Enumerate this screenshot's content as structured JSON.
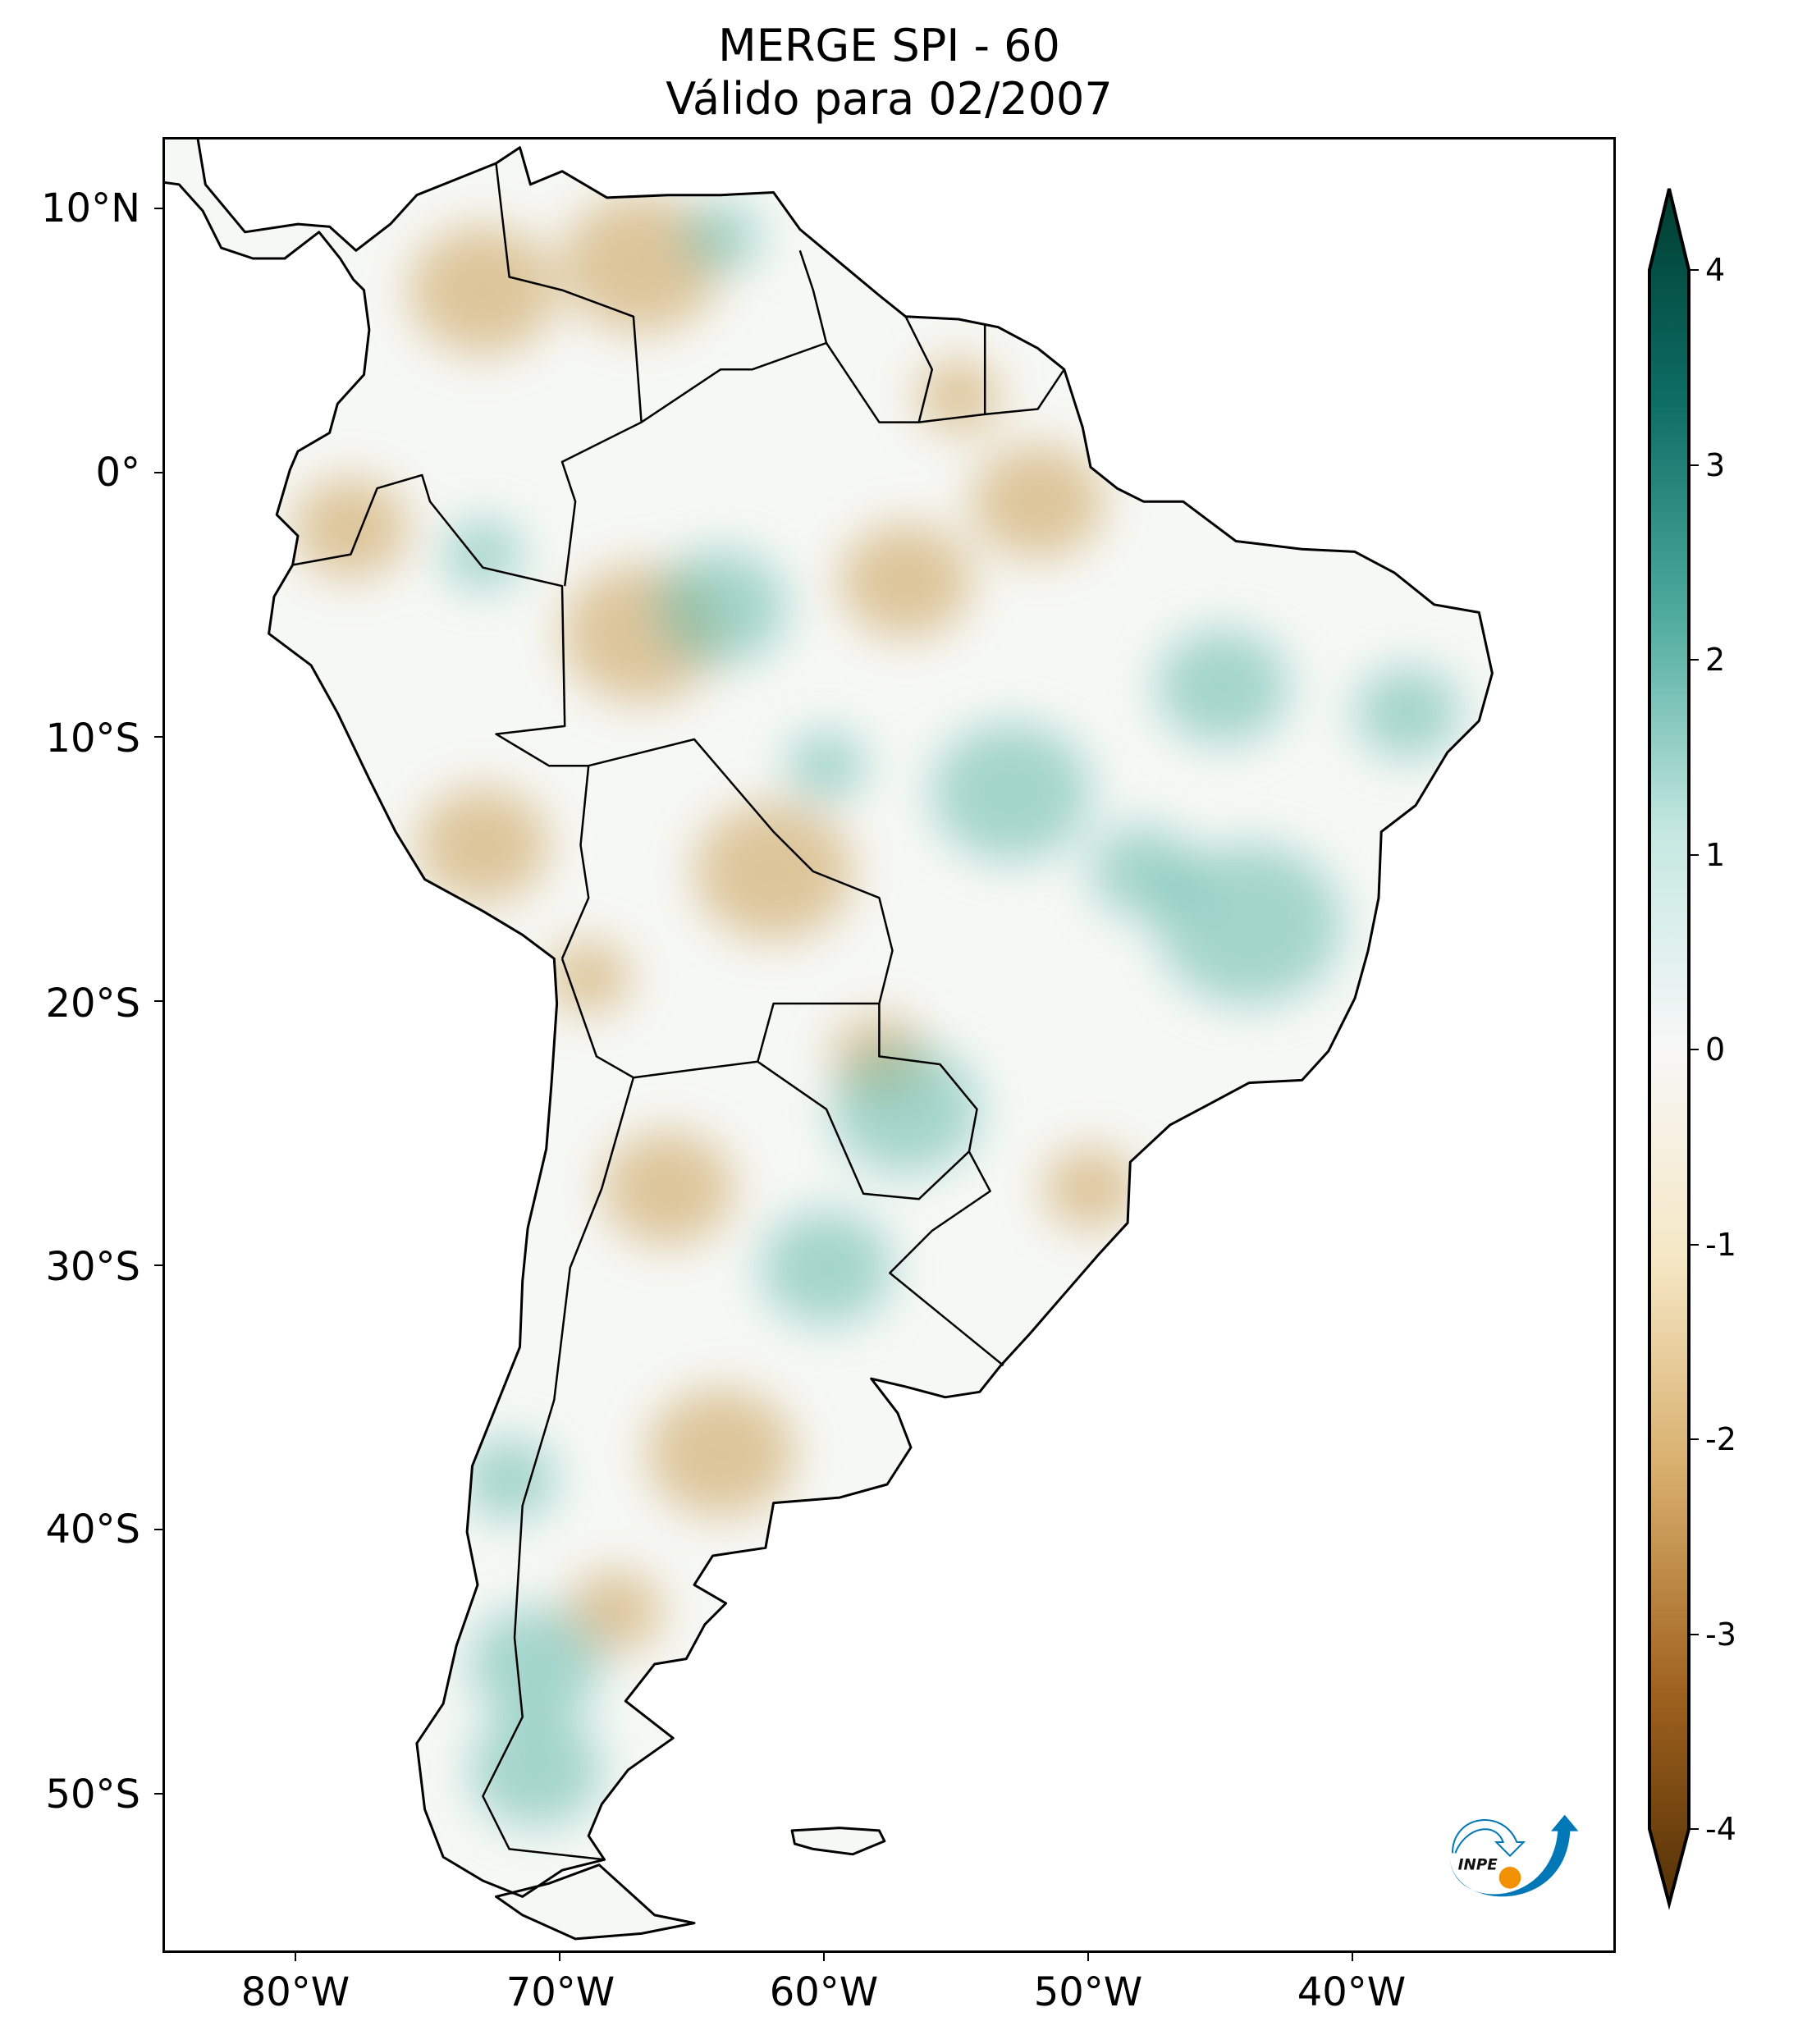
{
  "title": {
    "line1": "MERGE   SPI - 60",
    "line2": "Válido para 02/2007"
  },
  "chart_data": {
    "type": "heatmap",
    "title": "MERGE   SPI - 60 / Válido para 02/2007",
    "variable": "SPI - 60",
    "valid_date": "02/2007",
    "region": "South America",
    "lon_ticks": [
      "80°W",
      "70°W",
      "60°W",
      "50°W",
      "40°W"
    ],
    "lat_ticks": [
      "10°N",
      "0°",
      "10°S",
      "20°S",
      "30°S",
      "40°S",
      "50°S"
    ],
    "lon_tick_values": [
      -80,
      -70,
      -60,
      -50,
      -40
    ],
    "lat_tick_values": [
      10,
      0,
      -10,
      -20,
      -30,
      -40,
      -50
    ],
    "colorbar": {
      "ticks": [
        "4",
        "3",
        "2",
        "1",
        "0",
        "-1",
        "-2",
        "-3",
        "-4"
      ],
      "tick_values": [
        4,
        3,
        2,
        1,
        0,
        -1,
        -2,
        -3,
        -4
      ],
      "range": [
        -4,
        4
      ],
      "extend": "both",
      "colormap": "BrBG"
    }
  },
  "logo": {
    "text": "INPE"
  },
  "colors": {
    "ocean": "#ffffff",
    "land": "#f6f8f5",
    "dry": "#c89a4e",
    "wet": "#5fb8a8",
    "border": "#000000"
  }
}
